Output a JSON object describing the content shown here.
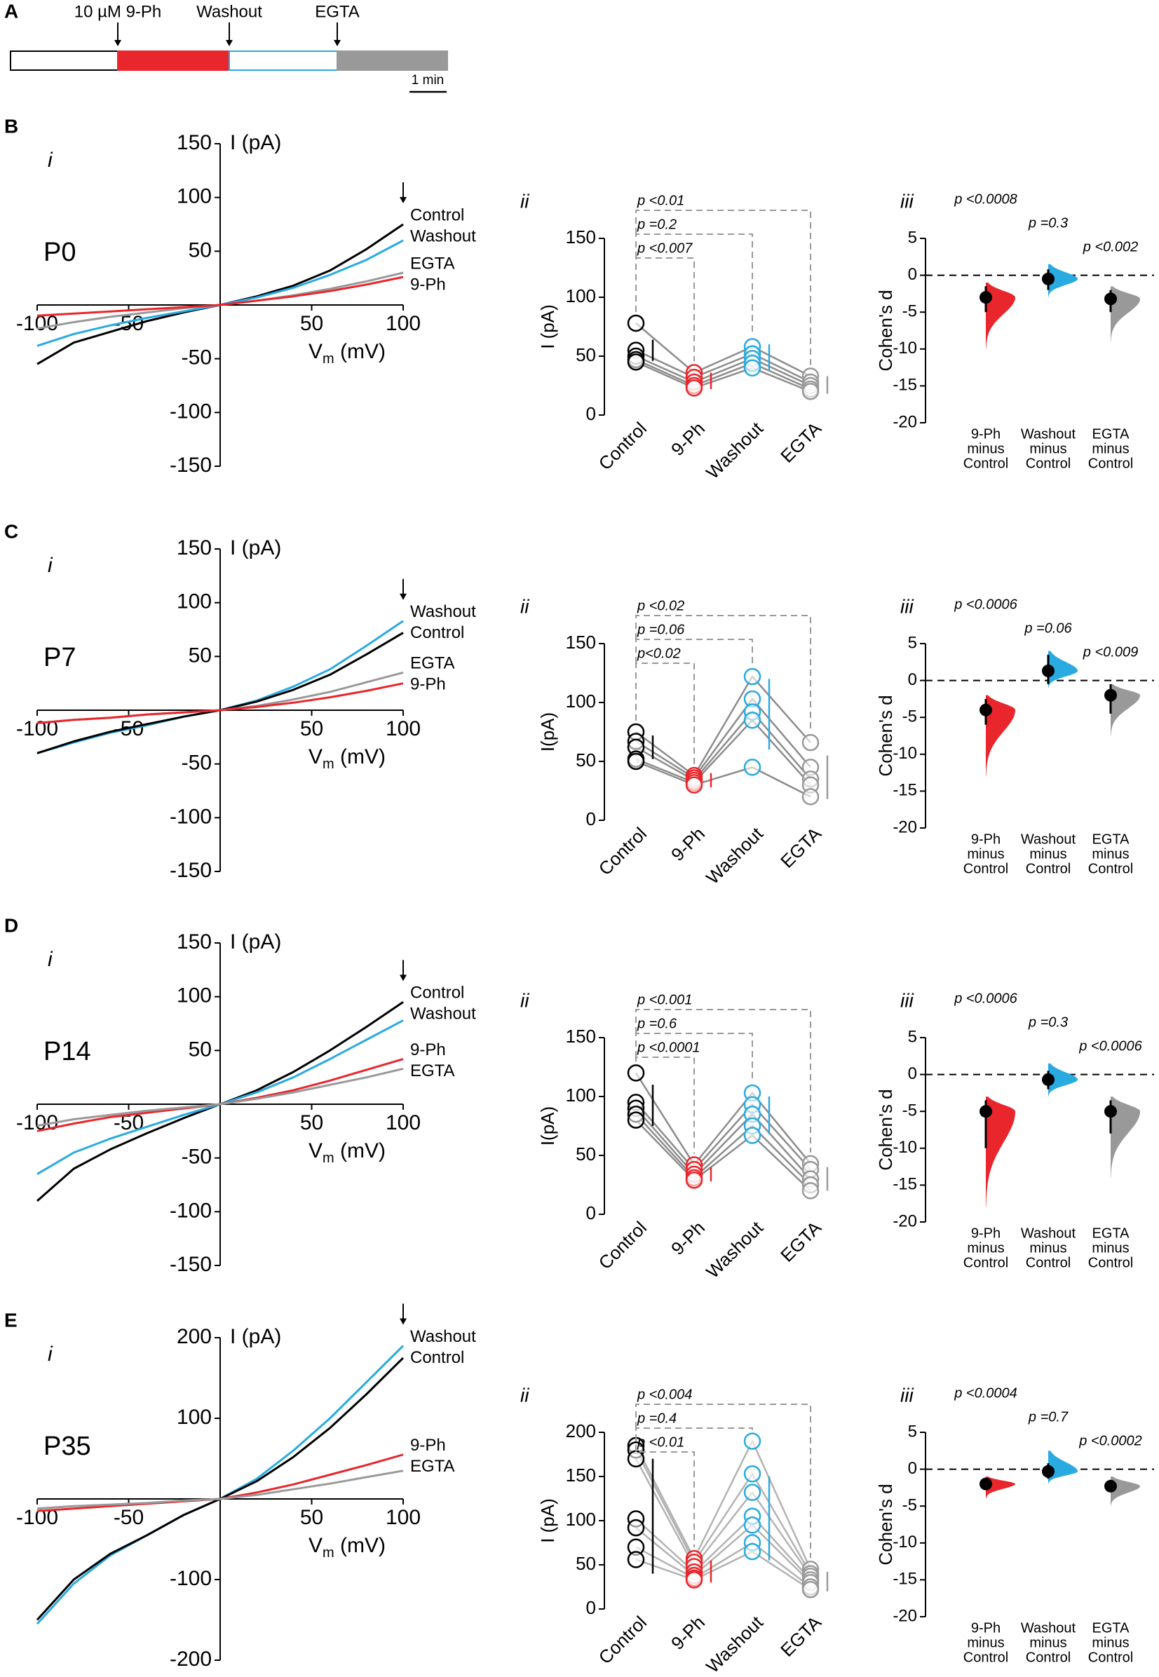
{
  "panel_a": {
    "label": "A",
    "events": [
      {
        "text": "10 µM 9-Ph",
        "color": "#e8262c"
      },
      {
        "text": "Washout",
        "color": "#29aae1"
      },
      {
        "text": "EGTA",
        "color": "#999999"
      }
    ],
    "scale_bar": "1 min"
  },
  "chart_data": [
    {
      "type": "line",
      "panel": "B",
      "label": "i",
      "annotation": "P0",
      "ylabel": "I (pA)",
      "xlabel": "V",
      "xlabel_sub": "m",
      "xlabel_unit": " (mV)",
      "x": [
        -100,
        -80,
        -60,
        -40,
        -20,
        0,
        20,
        40,
        60,
        80,
        100
      ],
      "xlim": [
        -100,
        100
      ],
      "xticks": [
        -100,
        -50,
        50,
        100
      ],
      "ylim": [
        -150,
        150
      ],
      "yticks": [
        -150,
        -100,
        -50,
        50,
        100,
        150
      ],
      "series": [
        {
          "name": "Control",
          "color": "#000000",
          "values": [
            -55,
            -35,
            -25,
            -15,
            -7,
            0,
            8,
            18,
            32,
            52,
            75
          ]
        },
        {
          "name": "Washout",
          "color": "#29aae1",
          "values": [
            -38,
            -27,
            -19,
            -12,
            -6,
            0,
            7,
            16,
            28,
            42,
            60
          ]
        },
        {
          "name": "EGTA",
          "color": "#999999",
          "values": [
            -22,
            -16,
            -11,
            -7,
            -3,
            0,
            4,
            9,
            15,
            22,
            30
          ]
        },
        {
          "name": "9-Ph",
          "color": "#e8262c",
          "values": [
            -10,
            -8,
            -6,
            -4,
            -2,
            0,
            4,
            8,
            13,
            19,
            26
          ]
        }
      ]
    },
    {
      "type": "paired",
      "label": "ii",
      "ylabel": "I (pA)",
      "categories": [
        "Control",
        "9-Ph",
        "Washout",
        "EGTA"
      ],
      "colors": [
        "#000000",
        "#e8262c",
        "#29aae1",
        "#999999"
      ],
      "line_color": "#8c8c8c",
      "values": [
        [
          78,
          55,
          50,
          47,
          45
        ],
        [
          36,
          32,
          28,
          25,
          23
        ],
        [
          58,
          52,
          48,
          44,
          40
        ],
        [
          33,
          28,
          25,
          22,
          20
        ]
      ],
      "error_bars": [
        [
          46,
          64
        ],
        [
          22,
          36
        ],
        [
          38,
          60
        ],
        [
          18,
          33
        ]
      ],
      "p_labels": [
        "p <0.01",
        "p =0.2",
        "p <0.007"
      ],
      "ylim": [
        0,
        150
      ],
      "yticks": [
        0,
        50,
        100,
        150
      ]
    },
    {
      "type": "effect",
      "label": "iii",
      "ylabel": "Cohen's d",
      "categories": [
        [
          "9-Ph",
          "minus",
          "Control"
        ],
        [
          "Washout",
          "minus",
          "Control"
        ],
        [
          "EGTA",
          "minus",
          "Control"
        ]
      ],
      "colors": [
        "#e8262c",
        "#29aae1",
        "#999999"
      ],
      "values": [
        -3,
        -0.5,
        -3.2
      ],
      "ci": [
        [
          -5,
          -1.5
        ],
        [
          -2,
          0.8
        ],
        [
          -5,
          -2
        ]
      ],
      "distributions": [
        [
          -10,
          -1
        ],
        [
          -3,
          1.5
        ],
        [
          -9,
          -1.5
        ]
      ],
      "p_labels": [
        "p <0.0008",
        "p =0.3",
        "p <0.002"
      ],
      "ylim": [
        -20,
        5
      ],
      "yticks": [
        -20,
        -15,
        -10,
        -5,
        0,
        5
      ]
    },
    {
      "type": "line",
      "panel": "C",
      "label": "i",
      "annotation": "P7",
      "ylabel": "I (pA)",
      "xlabel": "V",
      "xlabel_sub": "m",
      "xlabel_unit": " (mV)",
      "x": [
        -100,
        -80,
        -60,
        -40,
        -20,
        0,
        20,
        40,
        60,
        80,
        100
      ],
      "xlim": [
        -100,
        100
      ],
      "xticks": [
        -100,
        -50,
        50,
        100
      ],
      "ylim": [
        -150,
        150
      ],
      "yticks": [
        -150,
        -100,
        -50,
        50,
        100,
        150
      ],
      "series": [
        {
          "name": "Washout",
          "color": "#29aae1",
          "values": [
            -40,
            -30,
            -21,
            -14,
            -6,
            0,
            9,
            22,
            38,
            60,
            83
          ]
        },
        {
          "name": "Control",
          "color": "#000000",
          "values": [
            -40,
            -29,
            -20,
            -13,
            -6,
            0,
            8,
            19,
            33,
            52,
            72
          ]
        },
        {
          "name": "EGTA",
          "color": "#999999",
          "values": [
            -12,
            -9,
            -7,
            -4,
            -2,
            0,
            4,
            10,
            17,
            26,
            35
          ]
        },
        {
          "name": "9-Ph",
          "color": "#e8262c",
          "values": [
            -12,
            -9,
            -7,
            -4,
            -2,
            0,
            3,
            7,
            12,
            18,
            25
          ]
        }
      ]
    },
    {
      "type": "paired",
      "label": "ii",
      "ylabel": "I(pA)",
      "categories": [
        "Control",
        "9-Ph",
        "Washout",
        "EGTA"
      ],
      "colors": [
        "#000000",
        "#e8262c",
        "#29aae1",
        "#999999"
      ],
      "line_color": "#8c8c8c",
      "values": [
        [
          75,
          67,
          62,
          52,
          50
        ],
        [
          38,
          36,
          34,
          32,
          30
        ],
        [
          122,
          103,
          92,
          85,
          45
        ],
        [
          66,
          45,
          35,
          30,
          20
        ]
      ],
      "error_bars": [
        [
          52,
          72
        ],
        [
          28,
          40
        ],
        [
          60,
          120
        ],
        [
          18,
          55
        ]
      ],
      "p_labels": [
        "p <0.02",
        "p =0.06",
        "p<0.02"
      ],
      "ylim": [
        0,
        150
      ],
      "yticks": [
        0,
        50,
        100,
        150
      ]
    },
    {
      "type": "effect",
      "label": "iii",
      "ylabel": "Cohen's d",
      "categories": [
        [
          "9-Ph",
          "minus",
          "Control"
        ],
        [
          "Washout",
          "minus",
          "Control"
        ],
        [
          "EGTA",
          "minus",
          "Control"
        ]
      ],
      "colors": [
        "#e8262c",
        "#29aae1",
        "#999999"
      ],
      "values": [
        -4,
        1.3,
        -2
      ],
      "ci": [
        [
          -6,
          -2.5
        ],
        [
          -0.5,
          3.5
        ],
        [
          -4.5,
          -0.5
        ]
      ],
      "distributions": [
        [
          -13,
          -2
        ],
        [
          -1,
          4
        ],
        [
          -7.5,
          -0.5
        ]
      ],
      "p_labels": [
        "p <0.0006",
        "p =0.06",
        "p <0.009"
      ],
      "ylim": [
        -20,
        5
      ],
      "yticks": [
        -20,
        -15,
        -10,
        -5,
        0,
        5
      ]
    },
    {
      "type": "line",
      "panel": "D",
      "label": "i",
      "annotation": "P14",
      "ylabel": "I (pA)",
      "xlabel": "V",
      "xlabel_sub": "m",
      "xlabel_unit": " (mV)",
      "x": [
        -100,
        -80,
        -60,
        -40,
        -20,
        0,
        20,
        40,
        60,
        80,
        100
      ],
      "xlim": [
        -100,
        100
      ],
      "xticks": [
        -100,
        -50,
        50,
        100
      ],
      "ylim": [
        -150,
        150
      ],
      "yticks": [
        -150,
        -100,
        -50,
        50,
        100,
        150
      ],
      "series": [
        {
          "name": "Control",
          "color": "#000000",
          "values": [
            -90,
            -60,
            -42,
            -27,
            -13,
            0,
            13,
            30,
            50,
            72,
            95
          ]
        },
        {
          "name": "Washout",
          "color": "#29aae1",
          "values": [
            -65,
            -45,
            -32,
            -21,
            -10,
            0,
            11,
            25,
            42,
            60,
            78
          ]
        },
        {
          "name": "9-Ph",
          "color": "#e8262c",
          "values": [
            -25,
            -18,
            -12,
            -8,
            -4,
            0,
            6,
            13,
            22,
            32,
            42
          ]
        },
        {
          "name": "EGTA",
          "color": "#999999",
          "values": [
            -20,
            -14,
            -10,
            -6,
            -3,
            0,
            5,
            11,
            18,
            25,
            33
          ]
        }
      ]
    },
    {
      "type": "paired",
      "label": "ii",
      "ylabel": "I(pA)",
      "categories": [
        "Control",
        "9-Ph",
        "Washout",
        "EGTA"
      ],
      "colors": [
        "#000000",
        "#e8262c",
        "#29aae1",
        "#999999"
      ],
      "line_color": "#8c8c8c",
      "values": [
        [
          120,
          95,
          90,
          85,
          80
        ],
        [
          42,
          38,
          34,
          31,
          29
        ],
        [
          103,
          93,
          85,
          75,
          67
        ],
        [
          43,
          38,
          30,
          25,
          20
        ]
      ],
      "error_bars": [
        [
          75,
          110
        ],
        [
          28,
          40
        ],
        [
          68,
          100
        ],
        [
          20,
          40
        ]
      ],
      "p_labels": [
        "p <0.001",
        "p =0.6",
        "p <0.0001"
      ],
      "ylim": [
        0,
        150
      ],
      "yticks": [
        0,
        50,
        100,
        150
      ]
    },
    {
      "type": "effect",
      "label": "iii",
      "ylabel": "Cohen's d",
      "categories": [
        [
          "9-Ph",
          "minus",
          "Control"
        ],
        [
          "Washout",
          "minus",
          "Control"
        ],
        [
          "EGTA",
          "minus",
          "Control"
        ]
      ],
      "colors": [
        "#e8262c",
        "#29aae1",
        "#999999"
      ],
      "values": [
        -5,
        -0.7,
        -5
      ],
      "ci": [
        [
          -10,
          -3.5
        ],
        [
          -2,
          0.5
        ],
        [
          -8,
          -3.5
        ]
      ],
      "distributions": [
        [
          -18,
          -3
        ],
        [
          -3,
          1.5
        ],
        [
          -14,
          -3
        ]
      ],
      "p_labels": [
        "p <0.0006",
        "p =0.3",
        "p <0.0006"
      ],
      "ylim": [
        -20,
        5
      ],
      "yticks": [
        -20,
        -15,
        -10,
        -5,
        0,
        5
      ]
    },
    {
      "type": "line",
      "panel": "E",
      "label": "i",
      "annotation": "P35",
      "ylabel": "I (pA)",
      "xlabel": "V",
      "xlabel_sub": "m",
      "xlabel_unit": " (mV)",
      "x": [
        -100,
        -80,
        -60,
        -40,
        -20,
        0,
        20,
        40,
        60,
        80,
        100
      ],
      "xlim": [
        -100,
        100
      ],
      "xticks": [
        -100,
        -50,
        50,
        100
      ],
      "ylim": [
        -200,
        200
      ],
      "yticks": [
        -200,
        -100,
        100,
        200
      ],
      "series": [
        {
          "name": "Washout",
          "color": "#29aae1",
          "values": [
            -155,
            -105,
            -70,
            -45,
            -20,
            0,
            25,
            60,
            100,
            145,
            190
          ]
        },
        {
          "name": "Control",
          "color": "#000000",
          "values": [
            -150,
            -100,
            -68,
            -45,
            -20,
            0,
            22,
            52,
            88,
            130,
            175
          ]
        },
        {
          "name": "9-Ph",
          "color": "#e8262c",
          "values": [
            -15,
            -12,
            -9,
            -6,
            -3,
            0,
            8,
            18,
            30,
            42,
            55
          ]
        },
        {
          "name": "EGTA",
          "color": "#999999",
          "values": [
            -12,
            -9,
            -7,
            -5,
            -2,
            0,
            5,
            12,
            19,
            27,
            35
          ]
        }
      ]
    },
    {
      "type": "paired",
      "label": "ii",
      "ylabel": "I (pA)",
      "categories": [
        "Control",
        "9-Ph",
        "Washout",
        "EGTA"
      ],
      "colors": [
        "#000000",
        "#e8262c",
        "#29aae1",
        "#999999"
      ],
      "line_color": "#b3b3b3",
      "values": [
        [
          185,
          180,
          170,
          102,
          92,
          70,
          56
        ],
        [
          57,
          53,
          48,
          42,
          38,
          35,
          33
        ],
        [
          190,
          153,
          132,
          105,
          95,
          75,
          65
        ],
        [
          45,
          40,
          37,
          33,
          30,
          25,
          22
        ]
      ],
      "error_bars": [
        [
          40,
          170
        ],
        [
          30,
          55
        ],
        [
          55,
          150
        ],
        [
          20,
          42
        ]
      ],
      "p_labels": [
        "p <0.004",
        "p =0.4",
        "p <0.01"
      ],
      "ylim": [
        0,
        200
      ],
      "yticks": [
        0,
        50,
        100,
        150,
        200
      ]
    },
    {
      "type": "effect",
      "label": "iii",
      "ylabel": "Cohen's d",
      "categories": [
        [
          "9-Ph",
          "minus",
          "Control"
        ],
        [
          "Washout",
          "minus",
          "Control"
        ],
        [
          "EGTA",
          "minus",
          "Control"
        ]
      ],
      "colors": [
        "#e8262c",
        "#29aae1",
        "#999999"
      ],
      "values": [
        -2,
        -0.3,
        -2.3
      ],
      "ci": [
        [
          -2.8,
          -1.2
        ],
        [
          -1.3,
          0.8
        ],
        [
          -3,
          -1.5
        ]
      ],
      "distributions": [
        [
          -4,
          -1
        ],
        [
          -2,
          2.5
        ],
        [
          -5,
          -1
        ]
      ],
      "p_labels": [
        "p <0.0004",
        "p =0.7",
        "p <0.0002"
      ],
      "ylim": [
        -20,
        5
      ],
      "yticks": [
        -20,
        -15,
        -10,
        -5,
        0,
        5
      ]
    }
  ]
}
